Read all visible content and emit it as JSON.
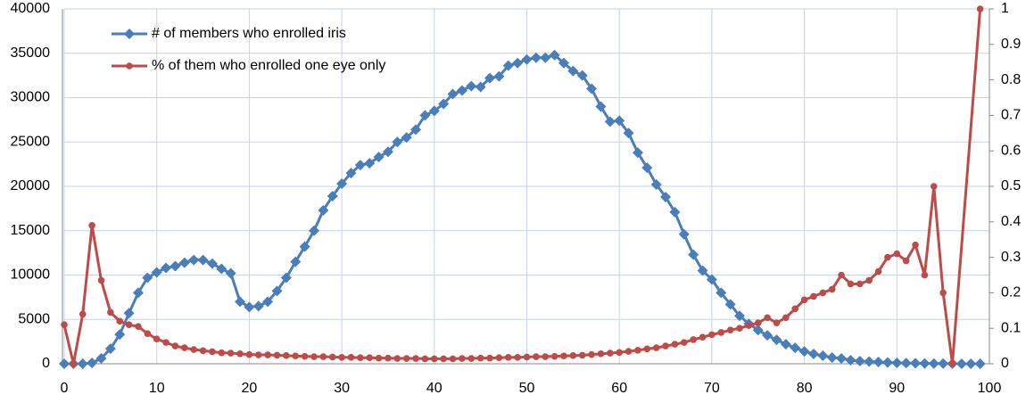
{
  "chart_data": {
    "type": "line",
    "x": [
      0,
      1,
      2,
      3,
      4,
      5,
      6,
      7,
      8,
      9,
      10,
      11,
      12,
      13,
      14,
      15,
      16,
      17,
      18,
      19,
      20,
      21,
      22,
      23,
      24,
      25,
      26,
      27,
      28,
      29,
      30,
      31,
      32,
      33,
      34,
      35,
      36,
      37,
      38,
      39,
      40,
      41,
      42,
      43,
      44,
      45,
      46,
      47,
      48,
      49,
      50,
      51,
      52,
      53,
      54,
      55,
      56,
      57,
      58,
      59,
      60,
      61,
      62,
      63,
      64,
      65,
      66,
      67,
      68,
      69,
      70,
      71,
      72,
      73,
      74,
      75,
      76,
      77,
      78,
      79,
      80,
      81,
      82,
      83,
      84,
      85,
      86,
      87,
      88,
      89,
      90,
      91,
      92,
      93,
      94,
      95,
      96,
      97,
      98,
      99
    ],
    "series": [
      {
        "name": "# of members who enrolled iris",
        "color": "#4a7ebb",
        "marker": "diamond",
        "values": [
          0,
          0,
          0,
          100,
          600,
          1700,
          3300,
          5700,
          8000,
          9700,
          10300,
          10800,
          11000,
          11400,
          11700,
          11700,
          11300,
          10700,
          10200,
          7000,
          6400,
          6500,
          7000,
          8200,
          9700,
          11500,
          13200,
          15000,
          17300,
          18900,
          20300,
          21500,
          22400,
          22600,
          23300,
          23900,
          25000,
          25500,
          26400,
          28000,
          28500,
          29300,
          30400,
          30800,
          31300,
          31200,
          32200,
          32400,
          33600,
          33900,
          34300,
          34500,
          34500,
          34800,
          33900,
          33000,
          32500,
          31000,
          29000,
          27300,
          27400,
          26000,
          23800,
          22100,
          20200,
          18800,
          17100,
          14600,
          12300,
          10500,
          9500,
          8000,
          6700,
          5400,
          4500,
          3800,
          3200,
          2700,
          2200,
          1800,
          1400,
          1100,
          900,
          700,
          600,
          400,
          300,
          250,
          200,
          150,
          100,
          80,
          60,
          40,
          30,
          20,
          10,
          5,
          2,
          0
        ]
      },
      {
        "name": "% of them who enrolled one eye only",
        "color": "#be4b48",
        "marker": "circle",
        "axis": "y2",
        "x": [
          0,
          1,
          2,
          3,
          4,
          5,
          6,
          7,
          8,
          9,
          10,
          11,
          12,
          13,
          14,
          15,
          16,
          17,
          18,
          19,
          20,
          21,
          22,
          23,
          24,
          25,
          26,
          27,
          28,
          29,
          30,
          31,
          32,
          33,
          34,
          35,
          36,
          37,
          38,
          39,
          40,
          41,
          42,
          43,
          44,
          45,
          46,
          47,
          48,
          49,
          50,
          51,
          52,
          53,
          54,
          55,
          56,
          57,
          58,
          59,
          60,
          61,
          62,
          63,
          64,
          65,
          66,
          67,
          68,
          69,
          70,
          71,
          72,
          73,
          74,
          75,
          76,
          77,
          78,
          79,
          80,
          81,
          82,
          83,
          84,
          85,
          86,
          87,
          88,
          89,
          90,
          91,
          92,
          93,
          94,
          95,
          96,
          99
        ],
        "values": [
          0.11,
          0,
          0.14,
          0.39,
          0.235,
          0.145,
          0.12,
          0.11,
          0.105,
          0.085,
          0.07,
          0.06,
          0.05,
          0.045,
          0.04,
          0.037,
          0.034,
          0.031,
          0.03,
          0.028,
          0.026,
          0.025,
          0.025,
          0.024,
          0.023,
          0.022,
          0.021,
          0.02,
          0.02,
          0.019,
          0.018,
          0.018,
          0.017,
          0.017,
          0.016,
          0.016,
          0.015,
          0.015,
          0.015,
          0.014,
          0.014,
          0.014,
          0.014,
          0.015,
          0.015,
          0.016,
          0.016,
          0.017,
          0.018,
          0.018,
          0.019,
          0.02,
          0.02,
          0.021,
          0.022,
          0.023,
          0.024,
          0.026,
          0.028,
          0.03,
          0.032,
          0.035,
          0.038,
          0.042,
          0.045,
          0.05,
          0.055,
          0.06,
          0.068,
          0.075,
          0.082,
          0.088,
          0.095,
          0.1,
          0.108,
          0.115,
          0.13,
          0.115,
          0.13,
          0.155,
          0.18,
          0.19,
          0.2,
          0.21,
          0.25,
          0.225,
          0.225,
          0.235,
          0.26,
          0.3,
          0.31,
          0.29,
          0.335,
          0.25,
          0.5,
          0.2,
          0,
          1
        ]
      }
    ],
    "xlim": [
      0,
      100
    ],
    "xticks": [
      0,
      10,
      20,
      30,
      40,
      50,
      60,
      70,
      80,
      90,
      100
    ],
    "ylim": [
      0,
      40000
    ],
    "yticks": [
      0,
      5000,
      10000,
      15000,
      20000,
      25000,
      30000,
      35000,
      40000
    ],
    "y2lim": [
      0,
      1
    ],
    "y2ticks": [
      0,
      0.1,
      0.2,
      0.3,
      0.4,
      0.5,
      0.6,
      0.7,
      0.8,
      0.9,
      1
    ],
    "grid": true,
    "legend": "upper left"
  }
}
